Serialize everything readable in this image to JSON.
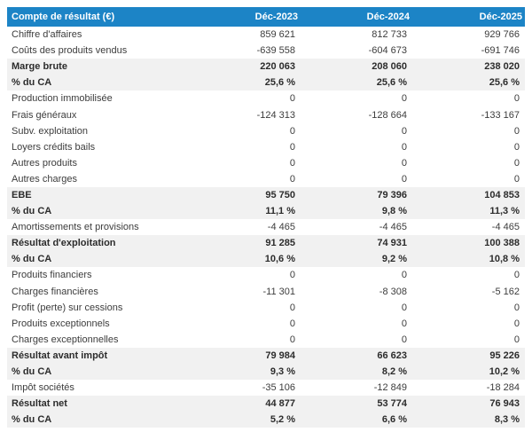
{
  "chart_data": {
    "type": "table",
    "title": "Compte de résultat (€)",
    "columns": [
      "Déc-2023",
      "Déc-2024",
      "Déc-2025"
    ],
    "rows": [
      {
        "label": "Chiffre d'affaires",
        "values": [
          "859 621",
          "812 733",
          "929 766"
        ],
        "style": "normal"
      },
      {
        "label": "Coûts des produits vendus",
        "values": [
          "-639 558",
          "-604 673",
          "-691 746"
        ],
        "style": "normal"
      },
      {
        "label": "Marge brute",
        "values": [
          "220 063",
          "208 060",
          "238 020"
        ],
        "style": "summary"
      },
      {
        "label": "% du CA",
        "values": [
          "25,6 %",
          "25,6 %",
          "25,6 %"
        ],
        "style": "summary"
      },
      {
        "label": "Production immobilisée",
        "values": [
          "0",
          "0",
          "0"
        ],
        "style": "normal"
      },
      {
        "label": "Frais généraux",
        "values": [
          "-124 313",
          "-128 664",
          "-133 167"
        ],
        "style": "normal"
      },
      {
        "label": "Subv. exploitation",
        "values": [
          "0",
          "0",
          "0"
        ],
        "style": "normal"
      },
      {
        "label": "Loyers crédits bails",
        "values": [
          "0",
          "0",
          "0"
        ],
        "style": "normal"
      },
      {
        "label": "Autres produits",
        "values": [
          "0",
          "0",
          "0"
        ],
        "style": "normal"
      },
      {
        "label": "Autres charges",
        "values": [
          "0",
          "0",
          "0"
        ],
        "style": "normal"
      },
      {
        "label": "EBE",
        "values": [
          "95 750",
          "79 396",
          "104 853"
        ],
        "style": "summary"
      },
      {
        "label": "% du CA",
        "values": [
          "11,1 %",
          "9,8 %",
          "11,3 %"
        ],
        "style": "summary"
      },
      {
        "label": "Amortissements et provisions",
        "values": [
          "-4 465",
          "-4 465",
          "-4 465"
        ],
        "style": "normal"
      },
      {
        "label": "Résultat d'exploitation",
        "values": [
          "91 285",
          "74 931",
          "100 388"
        ],
        "style": "summary"
      },
      {
        "label": "% du CA",
        "values": [
          "10,6 %",
          "9,2 %",
          "10,8 %"
        ],
        "style": "summary"
      },
      {
        "label": "Produits financiers",
        "values": [
          "0",
          "0",
          "0"
        ],
        "style": "normal"
      },
      {
        "label": "Charges financières",
        "values": [
          "-11 301",
          "-8 308",
          "-5 162"
        ],
        "style": "normal"
      },
      {
        "label": "Profit (perte) sur cessions",
        "values": [
          "0",
          "0",
          "0"
        ],
        "style": "normal"
      },
      {
        "label": "Produits exceptionnels",
        "values": [
          "0",
          "0",
          "0"
        ],
        "style": "normal"
      },
      {
        "label": "Charges exceptionnelles",
        "values": [
          "0",
          "0",
          "0"
        ],
        "style": "normal"
      },
      {
        "label": "Résultat avant impôt",
        "values": [
          "79 984",
          "66 623",
          "95 226"
        ],
        "style": "summary"
      },
      {
        "label": "% du CA",
        "values": [
          "9,3 %",
          "8,2 %",
          "10,2 %"
        ],
        "style": "summary"
      },
      {
        "label": "Impôt sociétés",
        "values": [
          "-35 106",
          "-12 849",
          "-18 284"
        ],
        "style": "normal"
      },
      {
        "label": "Résultat net",
        "values": [
          "44 877",
          "53 774",
          "76 943"
        ],
        "style": "summary"
      },
      {
        "label": "% du CA",
        "values": [
          "5,2 %",
          "6,6 %",
          "8,3 %"
        ],
        "style": "summary"
      }
    ],
    "layout": {
      "legend": "none",
      "grid": "off",
      "column_alignment": "right",
      "label_alignment": "left"
    },
    "colors": {
      "header_bg": "#1c84c6",
      "header_text": "#ffffff",
      "summary_row_bg": "#f1f1f1",
      "body_text": "#3c3c3c",
      "page_bg": "#ffffff"
    }
  }
}
